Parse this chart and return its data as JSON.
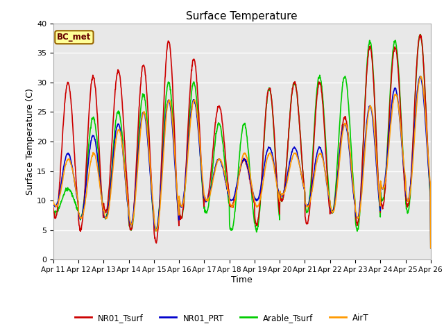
{
  "title": "Surface Temperature",
  "xlabel": "Time",
  "ylabel": "Surface Temperature (C)",
  "ylim": [
    0,
    40
  ],
  "bg_color": "#e8e8e8",
  "series_colors": {
    "NR01_Tsurf": "#cc0000",
    "NR01_PRT": "#0000cc",
    "Arable_Tsurf": "#00cc00",
    "AirT": "#ff9900"
  },
  "annotation_text": "BC_met",
  "annotation_bg": "#ffff99",
  "annotation_border": "#996600",
  "tick_labels": [
    "Apr 11",
    "Apr 12",
    "Apr 13",
    "Apr 14",
    "Apr 15",
    "Apr 16",
    "Apr 17",
    "Apr 18",
    "Apr 19",
    "Apr 20",
    "Apr 21",
    "Apr 22",
    "Apr 23",
    "Apr 24",
    "Apr 25",
    "Apr 26"
  ],
  "gridcolor": "white",
  "linewidth": 1.2,
  "red_peaks": [
    30,
    31,
    32,
    33,
    37,
    34,
    26,
    17,
    29,
    30,
    30,
    24,
    36,
    36,
    38
  ],
  "red_mins": [
    7,
    5,
    8,
    5,
    3,
    7,
    10,
    9,
    6,
    10,
    6,
    8,
    6,
    9,
    9
  ],
  "green_peaks": [
    12,
    24,
    25,
    28,
    30,
    30,
    23,
    23,
    29,
    30,
    31,
    31,
    37,
    37,
    38
  ],
  "green_mins": [
    8,
    7,
    7,
    5,
    5,
    7,
    8,
    5,
    5,
    10,
    8,
    8,
    5,
    10,
    8
  ],
  "blue_peaks": [
    18,
    21,
    23,
    25,
    27,
    27,
    17,
    17,
    19,
    19,
    19,
    23,
    26,
    29,
    31
  ],
  "blue_mins": [
    9,
    7,
    7,
    6,
    5,
    9,
    10,
    10,
    10,
    11,
    9,
    8,
    7,
    12,
    10
  ],
  "air_peaks": [
    17,
    18,
    22,
    25,
    27,
    27,
    17,
    18,
    18,
    18,
    18,
    23,
    26,
    28,
    31
  ],
  "air_mins": [
    9,
    7,
    7,
    6,
    5,
    9,
    10,
    9,
    9,
    11,
    9,
    8,
    7,
    12,
    10
  ]
}
